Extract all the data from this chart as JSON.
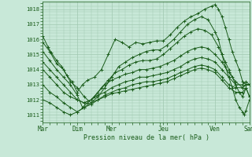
{
  "bg_color": "#c8e8d8",
  "grid_color": "#a0c8b0",
  "line_color": "#1a5c1a",
  "marker_color": "#1a5c1a",
  "xlabel": "Pression niveau de la mer( hPa )",
  "xlim": [
    0,
    6
  ],
  "ylim": [
    1010.5,
    1018.5
  ],
  "yticks": [
    1011,
    1012,
    1013,
    1014,
    1015,
    1016,
    1017,
    1018
  ],
  "xtick_labels": [
    "Mar",
    "Dim",
    "Mer",
    "Jeu",
    "Ven",
    "Sam"
  ],
  "xtick_positions": [
    0,
    1,
    2,
    3.5,
    5,
    6
  ],
  "series": [
    [
      [
        0.0,
        1016.2
      ],
      [
        0.15,
        1015.5
      ],
      [
        0.25,
        1015.1
      ],
      [
        0.4,
        1014.6
      ],
      [
        0.55,
        1014.2
      ],
      [
        0.7,
        1013.6
      ],
      [
        0.85,
        1013.2
      ],
      [
        1.0,
        1012.5
      ],
      [
        1.15,
        1013.0
      ],
      [
        1.3,
        1013.3
      ],
      [
        1.5,
        1013.5
      ],
      [
        1.7,
        1014.0
      ],
      [
        1.9,
        1015.0
      ],
      [
        2.1,
        1016.0
      ],
      [
        2.3,
        1015.8
      ],
      [
        2.5,
        1015.5
      ],
      [
        2.7,
        1015.8
      ],
      [
        2.9,
        1015.7
      ],
      [
        3.1,
        1015.8
      ],
      [
        3.3,
        1015.9
      ],
      [
        3.5,
        1015.9
      ],
      [
        3.7,
        1016.3
      ],
      [
        3.9,
        1016.8
      ],
      [
        4.1,
        1017.2
      ],
      [
        4.3,
        1017.5
      ],
      [
        4.5,
        1017.7
      ],
      [
        4.7,
        1018.0
      ],
      [
        4.9,
        1018.2
      ],
      [
        5.0,
        1018.3
      ],
      [
        5.1,
        1018.0
      ],
      [
        5.2,
        1017.5
      ],
      [
        5.3,
        1016.8
      ],
      [
        5.4,
        1016.0
      ],
      [
        5.5,
        1015.2
      ],
      [
        5.6,
        1014.6
      ],
      [
        5.7,
        1014.0
      ],
      [
        5.8,
        1013.2
      ],
      [
        5.9,
        1013.0
      ],
      [
        6.0,
        1013.0
      ]
    ],
    [
      [
        0.0,
        1015.8
      ],
      [
        0.2,
        1015.2
      ],
      [
        0.4,
        1014.4
      ],
      [
        0.6,
        1014.0
      ],
      [
        0.8,
        1013.2
      ],
      [
        1.0,
        1012.8
      ],
      [
        1.2,
        1012.2
      ],
      [
        1.4,
        1011.8
      ],
      [
        1.6,
        1012.2
      ],
      [
        1.8,
        1012.8
      ],
      [
        2.0,
        1013.5
      ],
      [
        2.2,
        1014.2
      ],
      [
        2.4,
        1014.5
      ],
      [
        2.6,
        1014.8
      ],
      [
        2.8,
        1015.0
      ],
      [
        3.0,
        1015.2
      ],
      [
        3.2,
        1015.3
      ],
      [
        3.4,
        1015.3
      ],
      [
        3.6,
        1015.6
      ],
      [
        3.8,
        1016.0
      ],
      [
        4.0,
        1016.5
      ],
      [
        4.2,
        1017.0
      ],
      [
        4.4,
        1017.3
      ],
      [
        4.6,
        1017.5
      ],
      [
        4.8,
        1017.3
      ],
      [
        5.0,
        1016.5
      ],
      [
        5.1,
        1016.0
      ],
      [
        5.2,
        1015.0
      ],
      [
        5.3,
        1014.2
      ],
      [
        5.4,
        1013.5
      ],
      [
        5.5,
        1012.8
      ],
      [
        5.6,
        1012.0
      ],
      [
        5.7,
        1011.5
      ],
      [
        5.8,
        1011.2
      ],
      [
        5.85,
        1011.0
      ],
      [
        5.9,
        1011.3
      ],
      [
        6.0,
        1012.0
      ]
    ],
    [
      [
        0.0,
        1015.2
      ],
      [
        0.2,
        1014.6
      ],
      [
        0.4,
        1014.0
      ],
      [
        0.6,
        1013.5
      ],
      [
        0.8,
        1013.0
      ],
      [
        1.0,
        1012.3
      ],
      [
        1.15,
        1011.5
      ],
      [
        1.3,
        1011.8
      ],
      [
        1.5,
        1012.2
      ],
      [
        1.7,
        1012.8
      ],
      [
        1.9,
        1013.3
      ],
      [
        2.1,
        1013.8
      ],
      [
        2.3,
        1014.0
      ],
      [
        2.5,
        1014.3
      ],
      [
        2.7,
        1014.5
      ],
      [
        2.9,
        1014.6
      ],
      [
        3.1,
        1014.6
      ],
      [
        3.3,
        1014.7
      ],
      [
        3.5,
        1015.0
      ],
      [
        3.7,
        1015.4
      ],
      [
        3.9,
        1015.8
      ],
      [
        4.1,
        1016.2
      ],
      [
        4.3,
        1016.5
      ],
      [
        4.5,
        1016.7
      ],
      [
        4.7,
        1016.6
      ],
      [
        4.9,
        1016.3
      ],
      [
        5.1,
        1015.5
      ],
      [
        5.2,
        1015.0
      ],
      [
        5.3,
        1014.5
      ],
      [
        5.4,
        1014.0
      ],
      [
        5.5,
        1013.5
      ],
      [
        5.6,
        1013.0
      ],
      [
        5.7,
        1012.5
      ],
      [
        5.8,
        1012.2
      ],
      [
        5.9,
        1012.8
      ],
      [
        6.0,
        1012.2
      ]
    ],
    [
      [
        0.0,
        1014.5
      ],
      [
        0.2,
        1014.0
      ],
      [
        0.4,
        1013.5
      ],
      [
        0.6,
        1013.0
      ],
      [
        0.8,
        1012.5
      ],
      [
        1.0,
        1012.0
      ],
      [
        1.2,
        1011.8
      ],
      [
        1.4,
        1012.0
      ],
      [
        1.6,
        1012.5
      ],
      [
        1.8,
        1013.0
      ],
      [
        2.0,
        1013.3
      ],
      [
        2.2,
        1013.5
      ],
      [
        2.4,
        1013.7
      ],
      [
        2.6,
        1013.8
      ],
      [
        2.8,
        1014.0
      ],
      [
        3.0,
        1014.0
      ],
      [
        3.2,
        1014.1
      ],
      [
        3.4,
        1014.2
      ],
      [
        3.6,
        1014.4
      ],
      [
        3.8,
        1014.6
      ],
      [
        4.0,
        1014.9
      ],
      [
        4.2,
        1015.2
      ],
      [
        4.4,
        1015.4
      ],
      [
        4.6,
        1015.5
      ],
      [
        4.8,
        1015.4
      ],
      [
        5.0,
        1015.0
      ],
      [
        5.2,
        1014.5
      ],
      [
        5.4,
        1013.8
      ],
      [
        5.6,
        1013.2
      ],
      [
        5.8,
        1012.8
      ],
      [
        5.9,
        1013.0
      ],
      [
        6.0,
        1013.0
      ]
    ],
    [
      [
        0.0,
        1014.0
      ],
      [
        0.2,
        1013.5
      ],
      [
        0.4,
        1013.0
      ],
      [
        0.6,
        1012.5
      ],
      [
        0.8,
        1012.2
      ],
      [
        1.0,
        1012.0
      ],
      [
        1.2,
        1011.8
      ],
      [
        1.4,
        1012.0
      ],
      [
        1.6,
        1012.3
      ],
      [
        1.8,
        1012.5
      ],
      [
        2.0,
        1012.8
      ],
      [
        2.2,
        1013.0
      ],
      [
        2.4,
        1013.2
      ],
      [
        2.6,
        1013.3
      ],
      [
        2.8,
        1013.5
      ],
      [
        3.0,
        1013.5
      ],
      [
        3.2,
        1013.6
      ],
      [
        3.4,
        1013.7
      ],
      [
        3.6,
        1013.8
      ],
      [
        3.8,
        1014.0
      ],
      [
        4.0,
        1014.2
      ],
      [
        4.2,
        1014.5
      ],
      [
        4.4,
        1014.7
      ],
      [
        4.6,
        1014.8
      ],
      [
        4.8,
        1014.7
      ],
      [
        5.0,
        1014.5
      ],
      [
        5.2,
        1014.0
      ],
      [
        5.4,
        1013.5
      ],
      [
        5.6,
        1013.0
      ],
      [
        5.8,
        1013.0
      ],
      [
        5.9,
        1013.2
      ],
      [
        6.0,
        1013.0
      ]
    ],
    [
      [
        0.0,
        1013.0
      ],
      [
        0.2,
        1012.5
      ],
      [
        0.4,
        1012.2
      ],
      [
        0.6,
        1011.8
      ],
      [
        0.8,
        1011.5
      ],
      [
        1.0,
        1011.2
      ],
      [
        1.2,
        1011.5
      ],
      [
        1.4,
        1011.8
      ],
      [
        1.6,
        1012.0
      ],
      [
        1.8,
        1012.3
      ],
      [
        2.0,
        1012.5
      ],
      [
        2.2,
        1012.7
      ],
      [
        2.4,
        1012.8
      ],
      [
        2.6,
        1013.0
      ],
      [
        2.8,
        1013.1
      ],
      [
        3.0,
        1013.2
      ],
      [
        3.2,
        1013.2
      ],
      [
        3.4,
        1013.3
      ],
      [
        3.6,
        1013.4
      ],
      [
        3.8,
        1013.6
      ],
      [
        4.0,
        1013.8
      ],
      [
        4.2,
        1014.0
      ],
      [
        4.4,
        1014.2
      ],
      [
        4.6,
        1014.3
      ],
      [
        4.8,
        1014.2
      ],
      [
        5.0,
        1014.0
      ],
      [
        5.2,
        1013.5
      ],
      [
        5.4,
        1013.0
      ],
      [
        5.6,
        1012.8
      ],
      [
        5.8,
        1012.8
      ],
      [
        5.9,
        1013.0
      ],
      [
        6.0,
        1013.0
      ]
    ],
    [
      [
        0.0,
        1012.0
      ],
      [
        0.2,
        1011.8
      ],
      [
        0.4,
        1011.5
      ],
      [
        0.6,
        1011.2
      ],
      [
        0.8,
        1011.0
      ],
      [
        1.0,
        1011.2
      ],
      [
        1.2,
        1011.5
      ],
      [
        1.4,
        1011.7
      ],
      [
        1.6,
        1012.0
      ],
      [
        1.8,
        1012.2
      ],
      [
        2.0,
        1012.4
      ],
      [
        2.2,
        1012.5
      ],
      [
        2.4,
        1012.6
      ],
      [
        2.6,
        1012.7
      ],
      [
        2.8,
        1012.8
      ],
      [
        3.0,
        1012.9
      ],
      [
        3.2,
        1013.0
      ],
      [
        3.4,
        1013.1
      ],
      [
        3.6,
        1013.2
      ],
      [
        3.8,
        1013.4
      ],
      [
        4.0,
        1013.6
      ],
      [
        4.2,
        1013.8
      ],
      [
        4.4,
        1014.0
      ],
      [
        4.6,
        1014.1
      ],
      [
        4.8,
        1014.0
      ],
      [
        5.0,
        1013.8
      ],
      [
        5.2,
        1013.3
      ],
      [
        5.4,
        1012.8
      ],
      [
        5.6,
        1012.5
      ],
      [
        5.8,
        1012.5
      ],
      [
        5.9,
        1012.8
      ],
      [
        6.0,
        1012.2
      ]
    ]
  ]
}
